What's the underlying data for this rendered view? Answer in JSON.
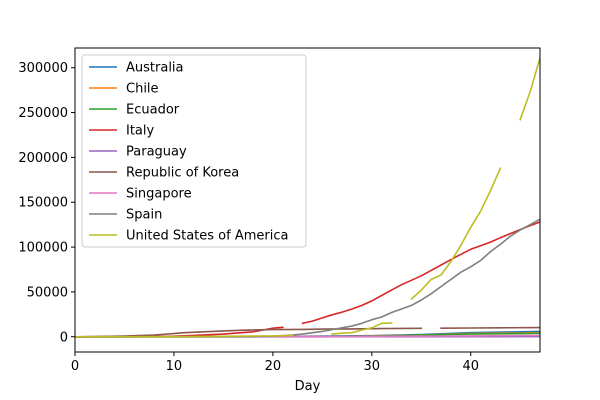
{
  "chart_data": {
    "type": "line",
    "title": "",
    "xlabel": "Day",
    "ylabel": "",
    "xlim": [
      0,
      47
    ],
    "ylim": [
      -17000,
      322000
    ],
    "x_ticks": [
      0,
      10,
      20,
      30,
      40
    ],
    "y_ticks": [
      0,
      50000,
      100000,
      150000,
      200000,
      250000,
      300000
    ],
    "y_tick_labels": [
      "0",
      "50000",
      "100000",
      "150000",
      "200000",
      "250000",
      "300000"
    ],
    "grid": false,
    "legend_position": "top-left",
    "series": [
      {
        "name": "Australia",
        "color": "#1f77b4",
        "points": [
          [
            0,
            0
          ],
          [
            10,
            100
          ],
          [
            20,
            300
          ],
          [
            25,
            700
          ],
          [
            30,
            1200
          ],
          [
            35,
            2500
          ],
          [
            40,
            4500
          ],
          [
            47,
            6000
          ]
        ]
      },
      {
        "name": "Chile",
        "color": "#ff7f0e",
        "points": [
          [
            0,
            0
          ],
          [
            10,
            0
          ],
          [
            20,
            50
          ],
          [
            25,
            250
          ],
          [
            30,
            800
          ],
          [
            35,
            2000
          ],
          [
            40,
            3500
          ],
          [
            47,
            4500
          ]
        ]
      },
      {
        "name": "Ecuador",
        "color": "#2ca02c",
        "points": [
          [
            0,
            0
          ],
          [
            10,
            0
          ],
          [
            20,
            50
          ],
          [
            25,
            200
          ],
          [
            30,
            600
          ],
          [
            35,
            1800
          ],
          [
            40,
            3000
          ],
          [
            47,
            3800
          ]
        ]
      },
      {
        "name": "Italy",
        "color": "#d62728",
        "points": [
          [
            0,
            0
          ],
          [
            5,
            200
          ],
          [
            10,
            600
          ],
          [
            12,
            1500
          ],
          [
            15,
            3000
          ],
          [
            18,
            5500
          ],
          [
            19,
            7500
          ],
          [
            20,
            9500
          ],
          [
            21,
            10500
          ],
          null,
          [
            23,
            15000
          ],
          [
            24,
            17500
          ],
          [
            25,
            21000
          ],
          [
            26,
            24500
          ],
          [
            27,
            27500
          ],
          [
            28,
            31000
          ],
          [
            29,
            35000
          ],
          [
            30,
            40000
          ],
          [
            31,
            46000
          ],
          [
            32,
            52000
          ],
          [
            33,
            58000
          ],
          [
            34,
            63000
          ],
          [
            35,
            68000
          ],
          [
            36,
            74000
          ],
          [
            37,
            80000
          ],
          [
            38,
            86000
          ],
          [
            39,
            92000
          ],
          [
            40,
            97500
          ],
          [
            41,
            101500
          ],
          [
            42,
            105500
          ],
          [
            43,
            110500
          ],
          [
            44,
            115000
          ],
          [
            45,
            119500
          ],
          [
            46,
            124000
          ],
          [
            47,
            128000
          ]
        ]
      },
      {
        "name": "Paraguay",
        "color": "#9467bd",
        "points": [
          [
            0,
            0
          ],
          [
            20,
            0
          ],
          [
            30,
            50
          ],
          [
            40,
            100
          ],
          [
            47,
            150
          ]
        ]
      },
      {
        "name": "Republic of Korea",
        "color": "#8c564b",
        "points": [
          [
            0,
            0
          ],
          [
            2,
            200
          ],
          [
            5,
            800
          ],
          [
            8,
            2000
          ],
          [
            10,
            3500
          ],
          [
            11,
            4500
          ],
          [
            13,
            5500
          ],
          [
            15,
            6500
          ],
          [
            17,
            7300
          ],
          [
            20,
            8000
          ],
          [
            23,
            8200
          ],
          [
            25,
            8500
          ],
          [
            28,
            8800
          ],
          [
            30,
            9000
          ],
          [
            33,
            9300
          ],
          [
            35,
            9400
          ],
          null,
          [
            37,
            9500
          ],
          [
            40,
            9800
          ],
          [
            43,
            10000
          ],
          [
            47,
            10200
          ]
        ]
      },
      {
        "name": "Singapore",
        "color": "#e377c2",
        "points": [
          [
            0,
            0
          ],
          [
            10,
            50
          ],
          [
            20,
            150
          ],
          [
            30,
            400
          ],
          [
            40,
            1000
          ],
          [
            47,
            1500
          ]
        ]
      },
      {
        "name": "Spain",
        "color": "#7f7f7f",
        "points": [
          [
            0,
            0
          ],
          [
            5,
            0
          ],
          [
            10,
            50
          ],
          [
            15,
            100
          ],
          [
            18,
            200
          ],
          [
            20,
            600
          ],
          [
            22,
            2000
          ],
          [
            23,
            3000
          ],
          [
            24,
            4500
          ],
          [
            25,
            6000
          ],
          [
            26,
            8000
          ],
          [
            27,
            10000
          ],
          [
            28,
            12000
          ],
          [
            29,
            15000
          ],
          [
            30,
            19000
          ],
          [
            31,
            22000
          ],
          [
            32,
            27000
          ],
          [
            33,
            31000
          ],
          [
            34,
            35000
          ],
          [
            35,
            41000
          ],
          [
            36,
            48000
          ],
          [
            37,
            56000
          ],
          [
            38,
            64000
          ],
          [
            39,
            72000
          ],
          [
            40,
            78000
          ],
          [
            41,
            85000
          ],
          [
            42,
            95000
          ],
          [
            43,
            103000
          ],
          [
            44,
            112000
          ],
          [
            45,
            119000
          ],
          [
            46,
            125000
          ],
          [
            47,
            131000
          ]
        ]
      },
      {
        "name": "United States of America",
        "color": "#bcbd22",
        "points": [
          [
            0,
            0
          ],
          [
            5,
            50
          ],
          [
            10,
            100
          ],
          [
            15,
            500
          ],
          [
            18,
            800
          ],
          [
            20,
            1000
          ],
          [
            22,
            1500
          ],
          null,
          [
            26,
            3000
          ],
          [
            27,
            4000
          ],
          [
            28,
            4500
          ],
          [
            29,
            7500
          ],
          [
            30,
            10000
          ],
          [
            31,
            15000
          ],
          [
            32,
            15500
          ],
          null,
          [
            34,
            42000
          ],
          [
            35,
            52000
          ],
          [
            36,
            64000
          ],
          [
            37,
            69000
          ],
          [
            38,
            84000
          ],
          [
            39,
            102000
          ],
          [
            40,
            122000
          ],
          [
            41,
            140000
          ],
          [
            42,
            163000
          ],
          [
            43,
            188000
          ],
          null,
          [
            45,
            242000
          ],
          [
            46,
            273000
          ],
          [
            47,
            311000
          ]
        ]
      }
    ]
  }
}
